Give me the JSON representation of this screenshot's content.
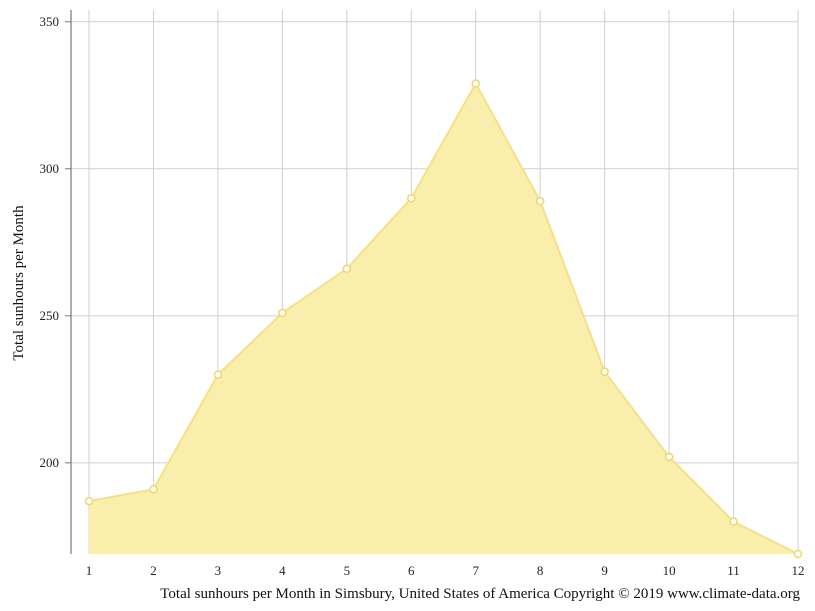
{
  "chart_data": {
    "type": "area",
    "x": [
      1,
      2,
      3,
      4,
      5,
      6,
      7,
      8,
      9,
      10,
      11,
      12
    ],
    "xticks": [
      "1",
      "2",
      "3",
      "4",
      "5",
      "6",
      "7",
      "8",
      "9",
      "10",
      "11",
      "12"
    ],
    "values": [
      187,
      191,
      230,
      251,
      266,
      290,
      329,
      289,
      231,
      202,
      180,
      169
    ],
    "ylabel": "Total sunhours per Month",
    "yticks": [
      200,
      250,
      300,
      350
    ],
    "ylim": [
      169,
      354
    ],
    "xlim": [
      1,
      12
    ],
    "grid": true,
    "caption": "Total sunhours per Month in Simsbury, United States of America Copyright © 2019 www.climate-data.org",
    "colors": {
      "fill": "#f9eeab",
      "line": "#f5e082",
      "marker_stroke": "#f0d768",
      "grid": "#d0d0d0",
      "axis": "#777777"
    }
  }
}
